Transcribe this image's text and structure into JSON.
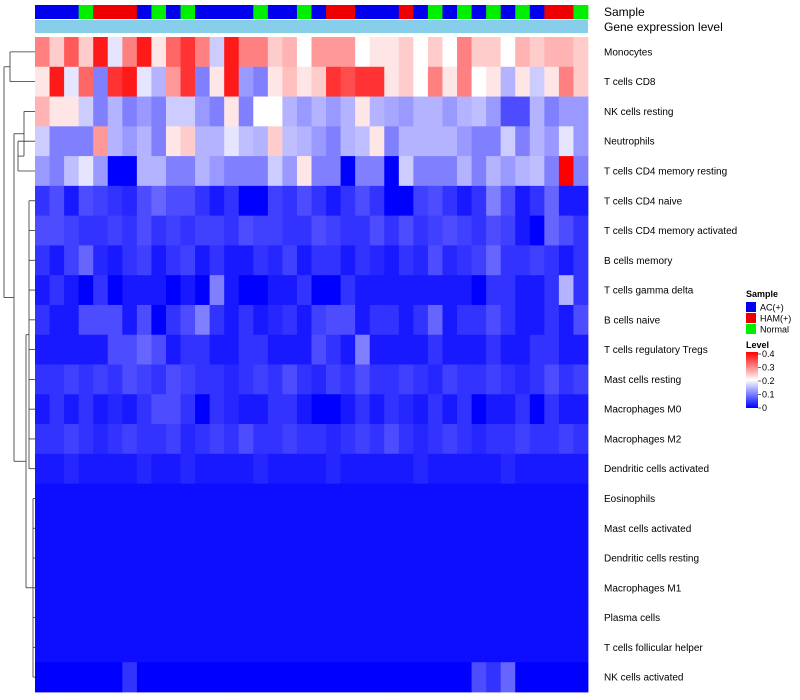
{
  "chart_data": {
    "type": "heatmap",
    "title": "",
    "annotation_labels": [
      "Sample",
      "Gene expression level"
    ],
    "rows": [
      "Monocytes",
      "T cells CD8",
      "NK cells resting",
      "Neutrophils",
      "T cells CD4 memory resting",
      "T cells CD4 naive",
      "T cells CD4 memory activated",
      "B cells memory",
      "T cells gamma delta",
      "B cells naive",
      "T cells regulatory  Tregs",
      "Mast cells resting",
      "Macrophages M0",
      "Macrophages M2",
      "Dendritic cells activated",
      "Eosinophils",
      "Mast cells activated",
      "Dendritic cells resting",
      "Macrophages M1",
      "Plasma cells",
      "T cells follicular helper",
      "NK cells activated"
    ],
    "sample_groups": [
      "AC(+)",
      "AC(+)",
      "AC(+)",
      "Normal",
      "HAM(+)",
      "HAM(+)",
      "HAM(+)",
      "AC(+)",
      "Normal",
      "AC(+)",
      "Normal",
      "AC(+)",
      "AC(+)",
      "AC(+)",
      "AC(+)",
      "Normal",
      "AC(+)",
      "AC(+)",
      "Normal",
      "AC(+)",
      "HAM(+)",
      "HAM(+)",
      "AC(+)",
      "AC(+)",
      "AC(+)",
      "HAM(+)",
      "AC(+)",
      "Normal",
      "AC(+)",
      "Normal",
      "AC(+)",
      "Normal",
      "AC(+)",
      "Normal",
      "AC(+)",
      "HAM(+)",
      "HAM(+)",
      "Normal"
    ],
    "values": [
      [
        0.3,
        0.24,
        0.33,
        0.24,
        0.38,
        0.18,
        0.3,
        0.38,
        0.22,
        0.32,
        0.36,
        0.3,
        0.16,
        0.38,
        0.3,
        0.3,
        0.24,
        0.26,
        0.2,
        0.28,
        0.28,
        0.28,
        0.2,
        0.22,
        0.22,
        0.24,
        0.2,
        0.24,
        0.2,
        0.3,
        0.24,
        0.24,
        0.2,
        0.26,
        0.24,
        0.26,
        0.26,
        0.24
      ],
      [
        0.22,
        0.38,
        0.18,
        0.32,
        0.1,
        0.36,
        0.38,
        0.18,
        0.14,
        0.28,
        0.36,
        0.1,
        0.22,
        0.38,
        0.12,
        0.1,
        0.22,
        0.25,
        0.22,
        0.24,
        0.36,
        0.34,
        0.36,
        0.36,
        0.22,
        0.24,
        0.2,
        0.3,
        0.22,
        0.3,
        0.2,
        0.22,
        0.14,
        0.22,
        0.16,
        0.22,
        0.3,
        0.24
      ],
      [
        0.26,
        0.22,
        0.22,
        0.16,
        0.1,
        0.14,
        0.1,
        0.12,
        0.1,
        0.16,
        0.16,
        0.12,
        0.1,
        0.22,
        0.1,
        0.2,
        0.2,
        0.14,
        0.12,
        0.14,
        0.12,
        0.14,
        0.22,
        0.14,
        0.13,
        0.12,
        0.14,
        0.14,
        0.12,
        0.14,
        0.15,
        0.12,
        0.06,
        0.06,
        0.14,
        0.1,
        0.12,
        0.12
      ],
      [
        0.16,
        0.1,
        0.1,
        0.1,
        0.28,
        0.14,
        0.12,
        0.14,
        0.1,
        0.22,
        0.24,
        0.14,
        0.14,
        0.18,
        0.15,
        0.14,
        0.24,
        0.15,
        0.14,
        0.12,
        0.1,
        0.14,
        0.15,
        0.22,
        0.1,
        0.14,
        0.14,
        0.14,
        0.14,
        0.12,
        0.1,
        0.1,
        0.16,
        0.1,
        0.14,
        0.12,
        0.18,
        0.12
      ],
      [
        0.12,
        0.1,
        0.15,
        0.18,
        0.12,
        0.0,
        0.0,
        0.14,
        0.14,
        0.1,
        0.1,
        0.14,
        0.12,
        0.1,
        0.1,
        0.1,
        0.16,
        0.12,
        0.22,
        0.1,
        0.1,
        0.0,
        0.1,
        0.1,
        0.0,
        0.16,
        0.1,
        0.1,
        0.1,
        0.14,
        0.1,
        0.14,
        0.12,
        0.14,
        0.15,
        0.1,
        0.4,
        0.1
      ],
      [
        0.04,
        0.06,
        0.02,
        0.06,
        0.05,
        0.04,
        0.03,
        0.06,
        0.08,
        0.06,
        0.06,
        0.04,
        0.02,
        0.04,
        0.0,
        0.0,
        0.05,
        0.04,
        0.06,
        0.04,
        0.02,
        0.04,
        0.06,
        0.04,
        0.0,
        0.0,
        0.05,
        0.06,
        0.04,
        0.02,
        0.04,
        0.1,
        0.06,
        0.02,
        0.04,
        0.08,
        0.02,
        0.02
      ],
      [
        0.06,
        0.06,
        0.05,
        0.04,
        0.04,
        0.05,
        0.04,
        0.06,
        0.04,
        0.05,
        0.04,
        0.05,
        0.05,
        0.04,
        0.06,
        0.05,
        0.05,
        0.04,
        0.04,
        0.06,
        0.05,
        0.04,
        0.04,
        0.06,
        0.04,
        0.06,
        0.04,
        0.05,
        0.06,
        0.05,
        0.04,
        0.06,
        0.05,
        0.02,
        0.0,
        0.08,
        0.06,
        0.04
      ],
      [
        0.04,
        0.02,
        0.05,
        0.08,
        0.03,
        0.02,
        0.04,
        0.05,
        0.02,
        0.04,
        0.05,
        0.02,
        0.04,
        0.02,
        0.02,
        0.04,
        0.03,
        0.05,
        0.02,
        0.04,
        0.04,
        0.02,
        0.04,
        0.03,
        0.02,
        0.04,
        0.03,
        0.06,
        0.03,
        0.04,
        0.05,
        0.08,
        0.04,
        0.04,
        0.05,
        0.04,
        0.02,
        0.04
      ],
      [
        0.02,
        0.04,
        0.02,
        0.0,
        0.04,
        0.0,
        0.02,
        0.02,
        0.02,
        0.0,
        0.02,
        0.0,
        0.1,
        0.02,
        0.0,
        0.0,
        0.02,
        0.02,
        0.04,
        0.0,
        0.0,
        0.04,
        0.02,
        0.02,
        0.02,
        0.02,
        0.02,
        0.02,
        0.02,
        0.02,
        0.0,
        0.04,
        0.04,
        0.02,
        0.02,
        0.04,
        0.14,
        0.04
      ],
      [
        0.04,
        0.02,
        0.02,
        0.06,
        0.06,
        0.06,
        0.02,
        0.06,
        0.0,
        0.04,
        0.06,
        0.1,
        0.04,
        0.02,
        0.04,
        0.02,
        0.03,
        0.04,
        0.02,
        0.05,
        0.06,
        0.06,
        0.02,
        0.04,
        0.04,
        0.02,
        0.04,
        0.08,
        0.02,
        0.04,
        0.04,
        0.06,
        0.04,
        0.02,
        0.02,
        0.04,
        0.02,
        0.06
      ],
      [
        0.02,
        0.02,
        0.02,
        0.02,
        0.02,
        0.06,
        0.06,
        0.08,
        0.06,
        0.02,
        0.04,
        0.04,
        0.02,
        0.02,
        0.04,
        0.04,
        0.02,
        0.02,
        0.02,
        0.06,
        0.04,
        0.02,
        0.1,
        0.02,
        0.02,
        0.02,
        0.02,
        0.04,
        0.02,
        0.02,
        0.02,
        0.04,
        0.02,
        0.02,
        0.04,
        0.04,
        0.02,
        0.02
      ],
      [
        0.04,
        0.04,
        0.05,
        0.04,
        0.05,
        0.04,
        0.06,
        0.05,
        0.04,
        0.06,
        0.05,
        0.04,
        0.04,
        0.03,
        0.04,
        0.05,
        0.04,
        0.06,
        0.04,
        0.03,
        0.05,
        0.04,
        0.06,
        0.04,
        0.04,
        0.05,
        0.04,
        0.03,
        0.05,
        0.04,
        0.04,
        0.05,
        0.04,
        0.03,
        0.04,
        0.06,
        0.04,
        0.05
      ],
      [
        0.02,
        0.04,
        0.02,
        0.04,
        0.02,
        0.03,
        0.02,
        0.04,
        0.06,
        0.06,
        0.04,
        0.0,
        0.04,
        0.03,
        0.02,
        0.02,
        0.04,
        0.04,
        0.02,
        0.0,
        0.0,
        0.02,
        0.04,
        0.02,
        0.04,
        0.03,
        0.02,
        0.04,
        0.02,
        0.04,
        0.0,
        0.02,
        0.02,
        0.04,
        0.0,
        0.04,
        0.02,
        0.02
      ],
      [
        0.04,
        0.04,
        0.05,
        0.04,
        0.03,
        0.04,
        0.05,
        0.04,
        0.04,
        0.05,
        0.03,
        0.04,
        0.05,
        0.04,
        0.06,
        0.04,
        0.04,
        0.05,
        0.04,
        0.04,
        0.03,
        0.04,
        0.05,
        0.04,
        0.06,
        0.04,
        0.03,
        0.04,
        0.05,
        0.04,
        0.03,
        0.04,
        0.04,
        0.05,
        0.04,
        0.04,
        0.05,
        0.04
      ],
      [
        0.02,
        0.02,
        0.03,
        0.02,
        0.02,
        0.02,
        0.02,
        0.03,
        0.02,
        0.02,
        0.03,
        0.02,
        0.02,
        0.02,
        0.02,
        0.03,
        0.02,
        0.02,
        0.02,
        0.02,
        0.03,
        0.02,
        0.02,
        0.02,
        0.02,
        0.02,
        0.03,
        0.02,
        0.02,
        0.02,
        0.02,
        0.02,
        0.03,
        0.02,
        0.02,
        0.02,
        0.02,
        0.02
      ],
      [
        0.01,
        0.01,
        0.01,
        0.01,
        0.01,
        0.01,
        0.01,
        0.01,
        0.01,
        0.01,
        0.01,
        0.01,
        0.01,
        0.01,
        0.01,
        0.01,
        0.01,
        0.01,
        0.01,
        0.01,
        0.01,
        0.01,
        0.01,
        0.01,
        0.01,
        0.01,
        0.01,
        0.01,
        0.01,
        0.01,
        0.01,
        0.01,
        0.01,
        0.01,
        0.01,
        0.01,
        0.01,
        0.01
      ],
      [
        0.01,
        0.01,
        0.01,
        0.01,
        0.01,
        0.01,
        0.01,
        0.01,
        0.01,
        0.01,
        0.01,
        0.01,
        0.01,
        0.01,
        0.01,
        0.01,
        0.01,
        0.01,
        0.01,
        0.01,
        0.01,
        0.01,
        0.01,
        0.01,
        0.01,
        0.01,
        0.01,
        0.01,
        0.01,
        0.01,
        0.01,
        0.01,
        0.01,
        0.01,
        0.01,
        0.01,
        0.01,
        0.01
      ],
      [
        0.01,
        0.01,
        0.01,
        0.01,
        0.01,
        0.01,
        0.01,
        0.01,
        0.01,
        0.01,
        0.01,
        0.01,
        0.01,
        0.01,
        0.01,
        0.01,
        0.01,
        0.01,
        0.01,
        0.01,
        0.01,
        0.01,
        0.01,
        0.01,
        0.01,
        0.01,
        0.01,
        0.01,
        0.01,
        0.01,
        0.01,
        0.01,
        0.01,
        0.01,
        0.01,
        0.01,
        0.01,
        0.01
      ],
      [
        0.01,
        0.01,
        0.01,
        0.01,
        0.01,
        0.01,
        0.01,
        0.01,
        0.01,
        0.01,
        0.01,
        0.01,
        0.01,
        0.01,
        0.01,
        0.01,
        0.01,
        0.01,
        0.01,
        0.01,
        0.01,
        0.01,
        0.01,
        0.01,
        0.01,
        0.01,
        0.01,
        0.01,
        0.01,
        0.01,
        0.01,
        0.01,
        0.01,
        0.01,
        0.01,
        0.01,
        0.01,
        0.01
      ],
      [
        0.01,
        0.01,
        0.01,
        0.01,
        0.01,
        0.01,
        0.01,
        0.01,
        0.01,
        0.01,
        0.01,
        0.01,
        0.01,
        0.01,
        0.01,
        0.01,
        0.01,
        0.01,
        0.01,
        0.01,
        0.01,
        0.01,
        0.01,
        0.01,
        0.01,
        0.01,
        0.01,
        0.01,
        0.01,
        0.01,
        0.01,
        0.01,
        0.01,
        0.01,
        0.01,
        0.01,
        0.01,
        0.01
      ],
      [
        0.01,
        0.01,
        0.01,
        0.01,
        0.01,
        0.01,
        0.01,
        0.01,
        0.01,
        0.01,
        0.01,
        0.01,
        0.01,
        0.01,
        0.01,
        0.01,
        0.01,
        0.01,
        0.01,
        0.01,
        0.01,
        0.01,
        0.01,
        0.01,
        0.01,
        0.01,
        0.01,
        0.01,
        0.01,
        0.01,
        0.01,
        0.01,
        0.01,
        0.01,
        0.01,
        0.01,
        0.01,
        0.01
      ],
      [
        0.0,
        0.0,
        0.0,
        0.0,
        0.0,
        0.0,
        0.04,
        0.0,
        0.0,
        0.0,
        0.0,
        0.0,
        0.0,
        0.0,
        0.0,
        0.0,
        0.0,
        0.0,
        0.0,
        0.0,
        0.0,
        0.0,
        0.0,
        0.0,
        0.0,
        0.0,
        0.0,
        0.0,
        0.0,
        0.0,
        0.06,
        0.04,
        0.08,
        0.0,
        0.0,
        0.0,
        0.0,
        0.0
      ]
    ],
    "legend": {
      "sample": {
        "title": "Sample",
        "entries": [
          {
            "label": "AC(+)",
            "color": "#0000ee"
          },
          {
            "label": "HAM(+)",
            "color": "#ee0000"
          },
          {
            "label": "Normal",
            "color": "#00ee00"
          }
        ]
      },
      "level": {
        "title": "Level",
        "ticks": [
          "0.4",
          "0.3",
          "0.2",
          "0.1",
          "0"
        ],
        "range": [
          0,
          0.4
        ]
      }
    },
    "colors": {
      "low": "#0000ff",
      "mid": "#ffffff",
      "high": "#ff0000",
      "expression_bar": "#87ceeb"
    }
  }
}
